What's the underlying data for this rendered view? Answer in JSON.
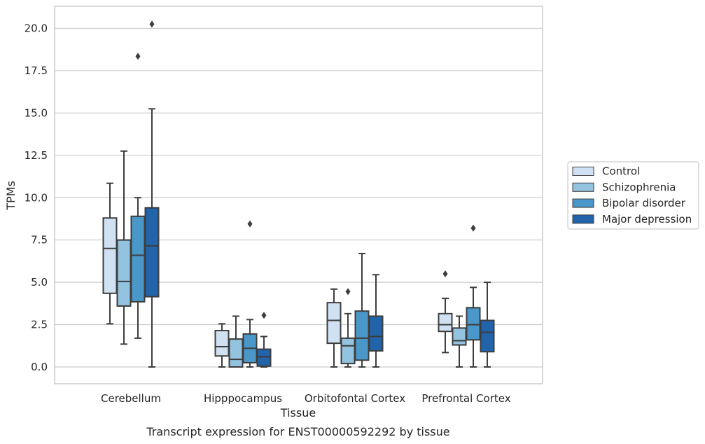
{
  "caption": "Transcript expression for ENST00000592292 by tissue",
  "chart_data": {
    "type": "boxplot",
    "xlabel": "Tissue",
    "ylabel": "TPMs",
    "ylim": [
      -1.0,
      21.3
    ],
    "yticks": [
      "0.0",
      "2.5",
      "5.0",
      "7.5",
      "10.0",
      "12.5",
      "15.0",
      "17.5",
      "20.0"
    ],
    "ytick_values": [
      0,
      2.5,
      5,
      7.5,
      10,
      12.5,
      15,
      17.5,
      20
    ],
    "grid": "horizontal",
    "legend_position": "right",
    "categories": [
      "Cerebellum",
      "Hipppocampus",
      "Orbitofontal Cortex",
      "Prefrontal Cortex"
    ],
    "series": [
      {
        "name": "Control",
        "color": "#cfe1f2",
        "boxes": [
          {
            "whislo": 2.55,
            "q1": 4.35,
            "med": 7.0,
            "q3": 8.8,
            "whishi": 10.85,
            "fliers": []
          },
          {
            "whislo": 0.0,
            "q1": 0.65,
            "med": 1.2,
            "q3": 2.15,
            "whishi": 2.55,
            "fliers": []
          },
          {
            "whislo": 0.0,
            "q1": 1.4,
            "med": 2.75,
            "q3": 3.8,
            "whishi": 4.6,
            "fliers": []
          },
          {
            "whislo": 0.85,
            "q1": 2.1,
            "med": 2.5,
            "q3": 3.15,
            "whishi": 4.05,
            "fliers": [
              5.5
            ]
          }
        ]
      },
      {
        "name": "Schizophrenia",
        "color": "#93c3df",
        "boxes": [
          {
            "whislo": 1.35,
            "q1": 3.6,
            "med": 5.05,
            "q3": 7.5,
            "whishi": 12.75,
            "fliers": []
          },
          {
            "whislo": 0.0,
            "q1": 0.0,
            "med": 0.45,
            "q3": 1.65,
            "whishi": 3.0,
            "fliers": []
          },
          {
            "whislo": 0.0,
            "q1": 0.2,
            "med": 1.25,
            "q3": 1.7,
            "whishi": 3.15,
            "fliers": [
              4.45
            ]
          },
          {
            "whislo": 0.0,
            "q1": 1.3,
            "med": 1.55,
            "q3": 2.3,
            "whishi": 3.0,
            "fliers": []
          }
        ]
      },
      {
        "name": "Bipolar disorder",
        "color": "#4a98c9",
        "boxes": [
          {
            "whislo": 1.7,
            "q1": 3.85,
            "med": 6.6,
            "q3": 8.9,
            "whishi": 10.0,
            "fliers": [
              18.35
            ]
          },
          {
            "whislo": 0.0,
            "q1": 0.25,
            "med": 1.1,
            "q3": 1.95,
            "whishi": 2.8,
            "fliers": [
              8.45
            ]
          },
          {
            "whislo": 0.0,
            "q1": 0.4,
            "med": 1.7,
            "q3": 3.3,
            "whishi": 6.7,
            "fliers": []
          },
          {
            "whislo": 0.0,
            "q1": 1.6,
            "med": 2.5,
            "q3": 3.5,
            "whishi": 4.7,
            "fliers": [
              8.2
            ]
          }
        ]
      },
      {
        "name": "Major depression",
        "color": "#2164aa",
        "boxes": [
          {
            "whislo": 0.0,
            "q1": 4.15,
            "med": 7.15,
            "q3": 9.4,
            "whishi": 15.25,
            "fliers": [
              20.25
            ]
          },
          {
            "whislo": 0.0,
            "q1": 0.05,
            "med": 0.6,
            "q3": 1.05,
            "whishi": 1.8,
            "fliers": [
              3.05
            ]
          },
          {
            "whislo": 0.0,
            "q1": 0.95,
            "med": 1.8,
            "q3": 3.0,
            "whishi": 5.45,
            "fliers": []
          },
          {
            "whislo": 0.0,
            "q1": 0.9,
            "med": 2.05,
            "q3": 2.75,
            "whishi": 5.0,
            "fliers": []
          }
        ]
      }
    ]
  }
}
